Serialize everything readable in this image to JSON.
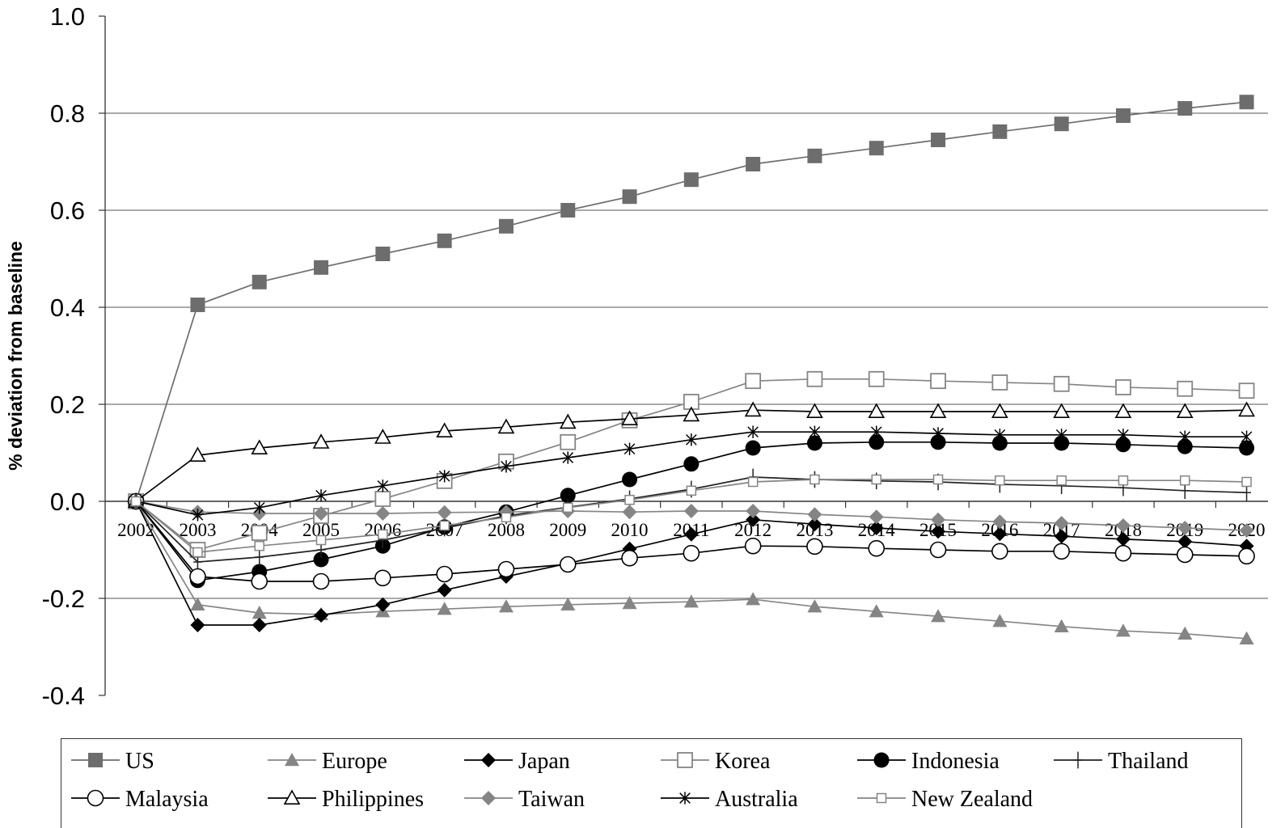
{
  "chart_data": {
    "type": "line",
    "title": "",
    "xlabel": "",
    "ylabel": "% deviation from baseline",
    "ylim": [
      -0.4,
      1.0
    ],
    "yticks": [
      "1.0",
      "0.8",
      "0.6",
      "0.4",
      "0.2",
      "0.0",
      "-0.2",
      "-0.4"
    ],
    "grid": true,
    "legend_position": "bottom",
    "categories": [
      "2002",
      "2003",
      "2004",
      "2005",
      "2006",
      "2007",
      "2008",
      "2009",
      "2010",
      "2011",
      "2012",
      "2013",
      "2014",
      "2015",
      "2016",
      "2017",
      "2018",
      "2019",
      "2020"
    ],
    "series": [
      {
        "name": "US",
        "marker": "filled-square",
        "color": "#6d6d6d",
        "values": [
          0,
          0.405,
          0.452,
          0.482,
          0.51,
          0.537,
          0.567,
          0.6,
          0.628,
          0.663,
          0.695,
          0.712,
          0.728,
          0.745,
          0.762,
          0.778,
          0.795,
          0.81,
          0.823
        ]
      },
      {
        "name": "Europe",
        "marker": "filled-triangle",
        "color": "#858585",
        "values": [
          0,
          -0.213,
          -0.23,
          -0.233,
          -0.227,
          -0.222,
          -0.217,
          -0.213,
          -0.21,
          -0.207,
          -0.202,
          -0.217,
          -0.227,
          -0.237,
          -0.247,
          -0.258,
          -0.267,
          -0.273,
          -0.283
        ]
      },
      {
        "name": "Japan",
        "marker": "filled-diamond",
        "color": "#000000",
        "values": [
          0,
          -0.255,
          -0.255,
          -0.235,
          -0.213,
          -0.183,
          -0.155,
          -0.128,
          -0.098,
          -0.068,
          -0.038,
          -0.047,
          -0.055,
          -0.062,
          -0.067,
          -0.072,
          -0.078,
          -0.083,
          -0.092
        ]
      },
      {
        "name": "Korea",
        "marker": "open-square",
        "color": "#858585",
        "values": [
          0,
          -0.1,
          -0.065,
          -0.03,
          0.005,
          0.042,
          0.082,
          0.122,
          0.167,
          0.205,
          0.248,
          0.252,
          0.252,
          0.248,
          0.245,
          0.242,
          0.235,
          0.232,
          0.228
        ]
      },
      {
        "name": "Indonesia",
        "marker": "filled-circle",
        "color": "#000000",
        "values": [
          0,
          -0.163,
          -0.145,
          -0.12,
          -0.092,
          -0.053,
          -0.022,
          0.012,
          0.045,
          0.077,
          0.11,
          0.12,
          0.122,
          0.122,
          0.12,
          0.12,
          0.117,
          0.113,
          0.11
        ]
      },
      {
        "name": "Thailand",
        "marker": "plus",
        "color": "#222222",
        "values": [
          0,
          -0.125,
          -0.115,
          -0.1,
          -0.08,
          -0.055,
          -0.03,
          -0.012,
          0.005,
          0.025,
          0.05,
          0.045,
          0.042,
          0.04,
          0.035,
          0.032,
          0.028,
          0.022,
          0.018
        ]
      },
      {
        "name": "Malaysia",
        "marker": "open-circle",
        "color": "#000000",
        "values": [
          0,
          -0.155,
          -0.165,
          -0.165,
          -0.158,
          -0.15,
          -0.14,
          -0.13,
          -0.117,
          -0.107,
          -0.092,
          -0.093,
          -0.097,
          -0.1,
          -0.103,
          -0.103,
          -0.107,
          -0.11,
          -0.113
        ]
      },
      {
        "name": "Philippines",
        "marker": "open-triangle",
        "color": "#000000",
        "values": [
          0,
          0.095,
          0.11,
          0.122,
          0.132,
          0.145,
          0.153,
          0.163,
          0.17,
          0.178,
          0.188,
          0.185,
          0.185,
          0.185,
          0.185,
          0.185,
          0.185,
          0.185,
          0.188
        ]
      },
      {
        "name": "Taiwan",
        "marker": "filled-diamond",
        "color": "#858585",
        "values": [
          0,
          -0.022,
          -0.025,
          -0.025,
          -0.025,
          -0.023,
          -0.022,
          -0.02,
          -0.022,
          -0.02,
          -0.02,
          -0.027,
          -0.032,
          -0.038,
          -0.042,
          -0.045,
          -0.05,
          -0.055,
          -0.06
        ]
      },
      {
        "name": "Australia",
        "marker": "asterisk",
        "color": "#000000",
        "values": [
          0,
          -0.028,
          -0.013,
          0.012,
          0.032,
          0.052,
          0.072,
          0.09,
          0.108,
          0.127,
          0.143,
          0.143,
          0.143,
          0.14,
          0.137,
          0.137,
          0.137,
          0.133,
          0.133
        ]
      },
      {
        "name": "New Zealand",
        "marker": "small-open-square",
        "color": "#858585",
        "values": [
          0,
          -0.105,
          -0.092,
          -0.08,
          -0.068,
          -0.05,
          -0.033,
          -0.013,
          0.003,
          0.022,
          0.04,
          0.045,
          0.045,
          0.045,
          0.043,
          0.043,
          0.043,
          0.043,
          0.04
        ]
      }
    ]
  }
}
